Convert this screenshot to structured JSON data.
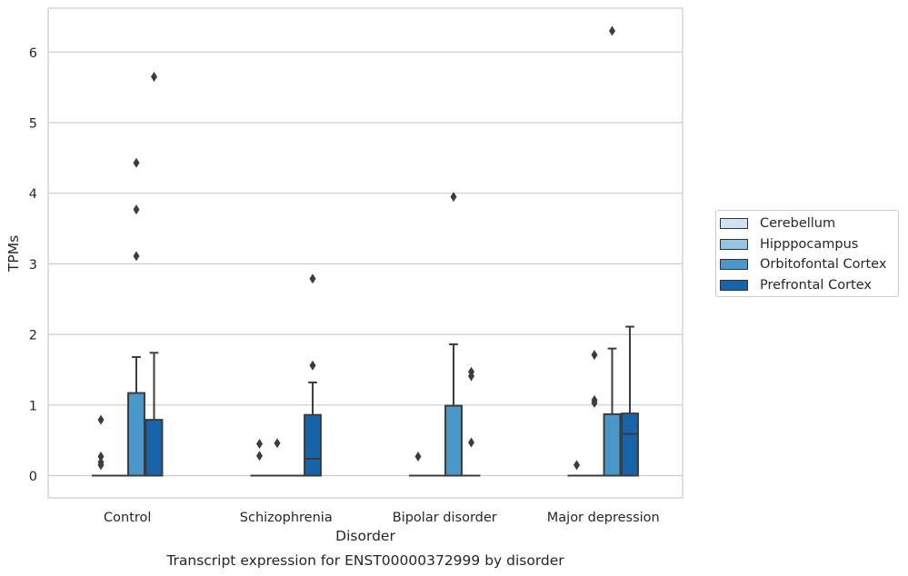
{
  "chart_data": {
    "type": "box",
    "title": "Transcript expression for ENST00000372999 by disorder",
    "xlabel": "Disorder",
    "ylabel": "TPMs",
    "ylim": [
      -0.3,
      6.6
    ],
    "yticks": [
      "0",
      "1",
      "2",
      "3",
      "4",
      "5",
      "6"
    ],
    "categories": [
      "Control",
      "Schizophrenia",
      "Bipolar disorder",
      "Major depression"
    ],
    "grid": true,
    "legend_position": "right",
    "series": [
      {
        "name": "Cerebellum",
        "color": "#d0e1f2",
        "boxes": [
          {
            "q1": 0,
            "median": 0,
            "q3": 0,
            "whisker_low": 0,
            "whisker_high": 0,
            "outliers": [
              0.15,
              0.19,
              0.27,
              0.79
            ]
          },
          {
            "q1": 0,
            "median": 0,
            "q3": 0,
            "whisker_low": 0,
            "whisker_high": 0,
            "outliers": [
              0.28,
              0.45
            ]
          },
          {
            "q1": 0,
            "median": 0,
            "q3": 0,
            "whisker_low": 0,
            "whisker_high": 0,
            "outliers": [
              0.27
            ]
          },
          {
            "q1": 0,
            "median": 0,
            "q3": 0,
            "whisker_low": 0,
            "whisker_high": 0,
            "outliers": [
              0.15
            ]
          }
        ]
      },
      {
        "name": "Hipppocampus",
        "color": "#94c4df",
        "boxes": [
          {
            "q1": 0,
            "median": 0,
            "q3": 0,
            "whisker_low": 0,
            "whisker_high": 0,
            "outliers": []
          },
          {
            "q1": 0,
            "median": 0,
            "q3": 0,
            "whisker_low": 0,
            "whisker_high": 0,
            "outliers": [
              0.46
            ]
          },
          {
            "q1": 0,
            "median": 0,
            "q3": 0,
            "whisker_low": 0,
            "whisker_high": 0,
            "outliers": []
          },
          {
            "q1": 0,
            "median": 0,
            "q3": 0,
            "whisker_low": 0,
            "whisker_high": 0,
            "outliers": [
              1.07,
              1.03,
              1.71
            ]
          }
        ]
      },
      {
        "name": "Orbitofontal Cortex",
        "color": "#4a98c9",
        "boxes": [
          {
            "q1": 0,
            "median": 0,
            "q3": 1.17,
            "whisker_low": 0,
            "whisker_high": 1.68,
            "outliers": [
              3.11,
              3.77,
              4.43
            ]
          },
          {
            "q1": 0,
            "median": 0,
            "q3": 0,
            "whisker_low": 0,
            "whisker_high": 0,
            "outliers": []
          },
          {
            "q1": 0,
            "median": 0,
            "q3": 0.99,
            "whisker_low": 0,
            "whisker_high": 1.86,
            "outliers": [
              3.95
            ]
          },
          {
            "q1": 0,
            "median": 0,
            "q3": 0.87,
            "whisker_low": 0,
            "whisker_high": 1.8,
            "outliers": [
              6.3
            ]
          }
        ]
      },
      {
        "name": "Prefrontal Cortex",
        "color": "#1764ab",
        "boxes": [
          {
            "q1": 0,
            "median": 0,
            "q3": 0.79,
            "whisker_low": 0,
            "whisker_high": 1.74,
            "outliers": [
              5.65
            ]
          },
          {
            "q1": 0,
            "median": 0.24,
            "q3": 0.86,
            "whisker_low": 0,
            "whisker_high": 1.32,
            "outliers": [
              1.56,
              2.79
            ]
          },
          {
            "q1": 0,
            "median": 0,
            "q3": 0,
            "whisker_low": 0,
            "whisker_high": 0,
            "outliers": [
              0.47,
              1.41,
              1.47
            ]
          },
          {
            "q1": 0,
            "median": 0.59,
            "q3": 0.88,
            "whisker_low": 0,
            "whisker_high": 2.11,
            "outliers": []
          }
        ]
      }
    ]
  }
}
